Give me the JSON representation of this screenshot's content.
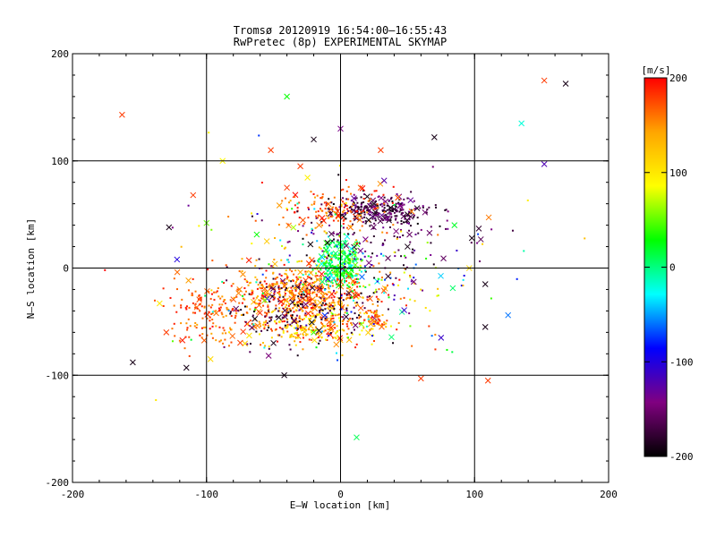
{
  "chart_data": {
    "type": "scatter",
    "title": "Tromsø 20120919 16:54:00–16:55:43",
    "subtitle": "RwPretec (8p) EXPERIMENTAL SKYMAP",
    "xlabel": "E–W location [km]",
    "ylabel": "N–S location [km]",
    "xlim": [
      -200,
      200
    ],
    "ylim": [
      -200,
      200
    ],
    "xticks": [
      "-200",
      "-100",
      "0",
      "100",
      "200"
    ],
    "yticks": [
      "-200",
      "-100",
      "0",
      "100",
      "200"
    ],
    "grid": true,
    "grid_lines": [
      -100,
      0,
      100
    ],
    "colorbar": {
      "label": "[m/s]",
      "range": [
        -200,
        200
      ],
      "ticks": [
        "200",
        "100",
        "0",
        "-100",
        "-200"
      ],
      "colors": [
        "#ff0000",
        "#ffa500",
        "#ffff00",
        "#00ff00",
        "#00ffff",
        "#0000ff",
        "#800080",
        "#000000"
      ]
    },
    "marker_types": [
      "dot",
      "x"
    ],
    "points": [
      {
        "x": -163,
        "y": 143,
        "v": 180,
        "m": "x"
      },
      {
        "x": 152,
        "y": 175,
        "v": 180,
        "m": "x"
      },
      {
        "x": 168,
        "y": 172,
        "v": -190,
        "m": "x"
      },
      {
        "x": -40,
        "y": 160,
        "v": 30,
        "m": "x"
      },
      {
        "x": 135,
        "y": 135,
        "v": -20,
        "m": "x"
      },
      {
        "x": 152,
        "y": 97,
        "v": -120,
        "m": "x"
      },
      {
        "x": -110,
        "y": 68,
        "v": 180,
        "m": "x"
      },
      {
        "x": -128,
        "y": 38,
        "v": -190,
        "m": "x"
      },
      {
        "x": -122,
        "y": 8,
        "v": -100,
        "m": "x"
      },
      {
        "x": -100,
        "y": 42,
        "v": 50,
        "m": "x"
      },
      {
        "x": -155,
        "y": -88,
        "v": -190,
        "m": "x"
      },
      {
        "x": -115,
        "y": -93,
        "v": -190,
        "m": "x"
      },
      {
        "x": -97,
        "y": -85,
        "v": 110,
        "m": "x"
      },
      {
        "x": -55,
        "y": 25,
        "v": 120,
        "m": "x"
      },
      {
        "x": -42,
        "y": -100,
        "v": -190,
        "m": "x"
      },
      {
        "x": 12,
        "y": -158,
        "v": 10,
        "m": "x"
      },
      {
        "x": 60,
        "y": -103,
        "v": 180,
        "m": "x"
      },
      {
        "x": 110,
        "y": -105,
        "v": 180,
        "m": "x"
      },
      {
        "x": 108,
        "y": -55,
        "v": -190,
        "m": "x"
      },
      {
        "x": 125,
        "y": -44,
        "v": -60,
        "m": "x"
      },
      {
        "x": 98,
        "y": 28,
        "v": -190,
        "m": "x"
      },
      {
        "x": 108,
        "y": -15,
        "v": -190,
        "m": "x"
      },
      {
        "x": 85,
        "y": 40,
        "v": 20,
        "m": "x"
      },
      {
        "x": 75,
        "y": -65,
        "v": -110,
        "m": "x"
      },
      {
        "x": -30,
        "y": 95,
        "v": 180,
        "m": "x"
      },
      {
        "x": -20,
        "y": 120,
        "v": -190,
        "m": "x"
      },
      {
        "x": 0,
        "y": 130,
        "v": -140,
        "m": "x"
      },
      {
        "x": 70,
        "y": 122,
        "v": -190,
        "m": "x"
      },
      {
        "x": 30,
        "y": 110,
        "v": 180,
        "m": "x"
      },
      {
        "x": -52,
        "y": 110,
        "v": 180,
        "m": "x"
      },
      {
        "x": -88,
        "y": 100,
        "v": 90,
        "m": "x"
      },
      {
        "x": -130,
        "y": -60,
        "v": 180,
        "m": "x"
      },
      {
        "x": -135,
        "y": -33,
        "v": 100,
        "m": "x"
      },
      {
        "x": 25,
        "y": 60,
        "v": -190,
        "m": "x"
      },
      {
        "x": 40,
        "y": 55,
        "v": -190,
        "m": "x"
      },
      {
        "x": 50,
        "y": 50,
        "v": -190,
        "m": "x"
      },
      {
        "x": 10,
        "y": 65,
        "v": -130,
        "m": "x"
      },
      {
        "x": -30,
        "y": -30,
        "v": 180,
        "m": "x"
      },
      {
        "x": -20,
        "y": -60,
        "v": 40,
        "m": "x"
      },
      {
        "x": 5,
        "y": 10,
        "v": 30,
        "m": "x"
      },
      {
        "x": 0,
        "y": 20,
        "v": 10,
        "m": "x"
      },
      {
        "x": 25,
        "y": -50,
        "v": 150,
        "m": "x"
      },
      {
        "x": -50,
        "y": -70,
        "v": -190,
        "m": "x"
      },
      {
        "x": 15,
        "y": 75,
        "v": 170,
        "m": "x"
      },
      {
        "x": -40,
        "y": 75,
        "v": 180,
        "m": "x"
      },
      {
        "x": 50,
        "y": 20,
        "v": -190,
        "m": "x"
      }
    ],
    "clusters": [
      {
        "cx": -30,
        "cy": -25,
        "sx": 45,
        "sy": 22,
        "n": 520,
        "vmin": 120,
        "vmax": 200,
        "seed": 1
      },
      {
        "cx": -20,
        "cy": -55,
        "sx": 40,
        "sy": 15,
        "n": 240,
        "vmin": 80,
        "vmax": 200,
        "seed": 2
      },
      {
        "cx": -30,
        "cy": -40,
        "sx": 45,
        "sy": 28,
        "n": 140,
        "vmin": -200,
        "vmax": -150,
        "seed": 3
      },
      {
        "cx": -100,
        "cy": -40,
        "sx": 28,
        "sy": 30,
        "n": 150,
        "vmin": 140,
        "vmax": 200,
        "seed": 4
      },
      {
        "cx": 0,
        "cy": 5,
        "sx": 13,
        "sy": 18,
        "n": 280,
        "vmin": -30,
        "vmax": 60,
        "seed": 5
      },
      {
        "cx": 30,
        "cy": 55,
        "sx": 30,
        "sy": 10,
        "n": 230,
        "vmin": -200,
        "vmax": -130,
        "seed": 6
      },
      {
        "cx": -10,
        "cy": 55,
        "sx": 35,
        "sy": 18,
        "n": 140,
        "vmin": 140,
        "vmax": 200,
        "seed": 7
      },
      {
        "cx": 30,
        "cy": 30,
        "sx": 60,
        "sy": 30,
        "n": 130,
        "vmin": -200,
        "vmax": -130,
        "seed": 8
      },
      {
        "cx": 10,
        "cy": -20,
        "sx": 55,
        "sy": 40,
        "n": 110,
        "vmin": -200,
        "vmax": 200,
        "seed": 9
      },
      {
        "cx": 0,
        "cy": 0,
        "sx": 95,
        "sy": 75,
        "n": 170,
        "vmin": -200,
        "vmax": 200,
        "seed": 10
      },
      {
        "cx": 25,
        "cy": -48,
        "sx": 8,
        "sy": 8,
        "n": 45,
        "vmin": 140,
        "vmax": 200,
        "seed": 11
      }
    ]
  }
}
